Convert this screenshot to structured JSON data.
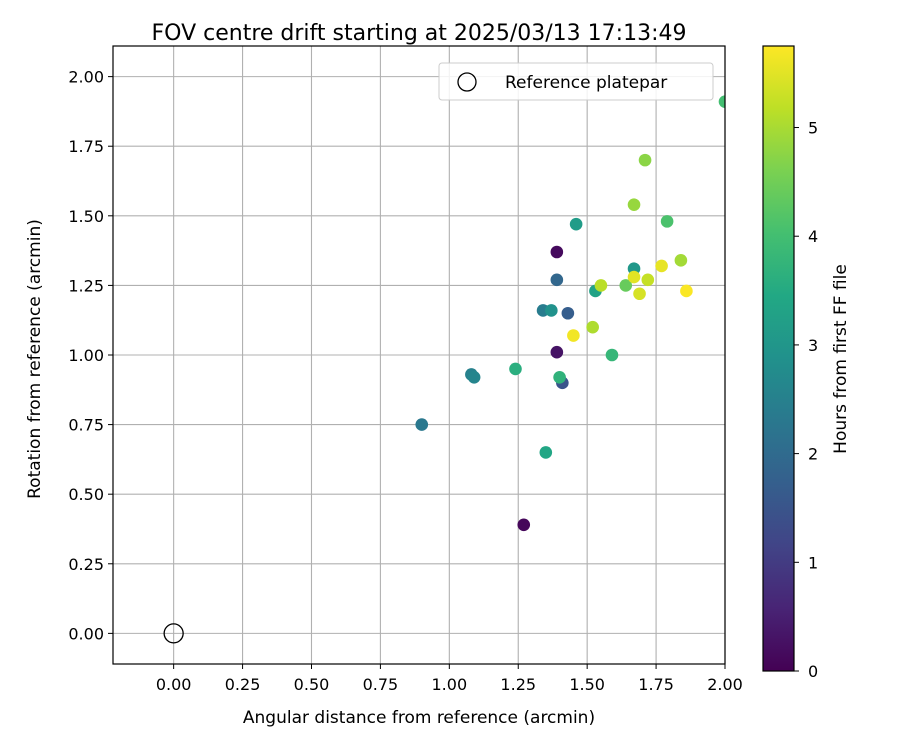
{
  "chart_data": {
    "type": "scatter",
    "title": "FOV centre drift starting at 2025/03/13 17:13:49",
    "xlabel": "Angular distance from reference (arcmin)",
    "ylabel": "Rotation from reference (arcmin)",
    "xlim": [
      -0.22,
      2.0
    ],
    "ylim": [
      -0.11,
      2.11
    ],
    "grid": true,
    "x_ticks": [
      "0.00",
      "0.25",
      "0.50",
      "0.75",
      "1.00",
      "1.25",
      "1.50",
      "1.75",
      "2.00"
    ],
    "y_ticks": [
      "0.00",
      "0.25",
      "0.50",
      "0.75",
      "1.00",
      "1.25",
      "1.50",
      "1.75",
      "2.00"
    ],
    "legend": {
      "position": "top-right",
      "entries": [
        "Reference platepar"
      ]
    },
    "reference_point": {
      "label": "Reference platepar",
      "x": 0.0,
      "y": 0.0
    },
    "colorbar": {
      "label": "Hours from first FF file",
      "colormap": "viridis",
      "range": [
        0,
        5.75
      ],
      "ticks": [
        "0",
        "1",
        "2",
        "3",
        "4",
        "5"
      ]
    },
    "points": [
      {
        "x": 1.27,
        "y": 0.39,
        "hours": 0.1
      },
      {
        "x": 1.39,
        "y": 1.37,
        "hours": 0.15
      },
      {
        "x": 1.39,
        "y": 1.01,
        "hours": 0.3
      },
      {
        "x": 1.41,
        "y": 0.9,
        "hours": 1.5
      },
      {
        "x": 1.43,
        "y": 1.15,
        "hours": 1.7
      },
      {
        "x": 1.39,
        "y": 1.27,
        "hours": 1.9
      },
      {
        "x": 0.9,
        "y": 0.75,
        "hours": 2.3
      },
      {
        "x": 1.34,
        "y": 1.16,
        "hours": 2.4
      },
      {
        "x": 1.08,
        "y": 0.93,
        "hours": 2.5
      },
      {
        "x": 1.09,
        "y": 0.92,
        "hours": 2.6
      },
      {
        "x": 1.37,
        "y": 1.16,
        "hours": 2.9
      },
      {
        "x": 1.67,
        "y": 1.31,
        "hours": 3.05
      },
      {
        "x": 1.46,
        "y": 1.47,
        "hours": 3.15
      },
      {
        "x": 1.53,
        "y": 1.23,
        "hours": 3.3
      },
      {
        "x": 1.35,
        "y": 0.65,
        "hours": 3.4
      },
      {
        "x": 1.24,
        "y": 0.95,
        "hours": 3.6
      },
      {
        "x": 1.4,
        "y": 0.92,
        "hours": 3.7
      },
      {
        "x": 1.59,
        "y": 1.0,
        "hours": 3.8
      },
      {
        "x": 2.0,
        "y": 1.91,
        "hours": 4.0
      },
      {
        "x": 1.79,
        "y": 1.48,
        "hours": 4.1
      },
      {
        "x": 1.64,
        "y": 1.25,
        "hours": 4.4
      },
      {
        "x": 1.71,
        "y": 1.7,
        "hours": 4.75
      },
      {
        "x": 1.67,
        "y": 1.54,
        "hours": 4.85
      },
      {
        "x": 1.84,
        "y": 1.34,
        "hours": 4.95
      },
      {
        "x": 1.52,
        "y": 1.1,
        "hours": 5.05
      },
      {
        "x": 1.55,
        "y": 1.25,
        "hours": 5.15
      },
      {
        "x": 1.72,
        "y": 1.27,
        "hours": 5.25
      },
      {
        "x": 1.69,
        "y": 1.22,
        "hours": 5.4
      },
      {
        "x": 1.67,
        "y": 1.28,
        "hours": 5.5
      },
      {
        "x": 1.77,
        "y": 1.32,
        "hours": 5.55
      },
      {
        "x": 1.45,
        "y": 1.07,
        "hours": 5.65
      },
      {
        "x": 1.86,
        "y": 1.23,
        "hours": 5.72
      }
    ]
  }
}
